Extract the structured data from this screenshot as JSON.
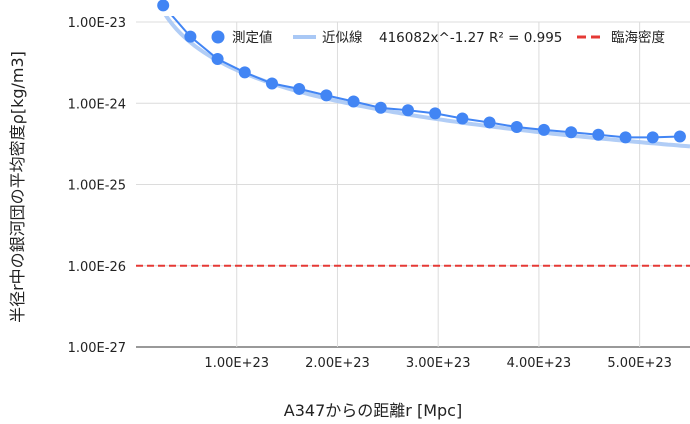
{
  "chart_data": {
    "type": "scatter",
    "title": "",
    "xlabel": "A347からの距離r [Mpc]",
    "ylabel": "半径r中の銀河団の平均密度ρ[kg/m3]",
    "x_scale": "linear",
    "y_scale": "log",
    "xlim": [
      0,
      5.5e+23
    ],
    "ylim": [
      1e-27,
      1e-23
    ],
    "x_ticks": [
      1e+23,
      2e+23,
      3e+23,
      4e+23,
      5e+23
    ],
    "x_tick_labels": [
      "1.00E+23",
      "2.00E+23",
      "3.00E+23",
      "4.00E+23",
      "5.00E+23"
    ],
    "y_ticks": [
      1e-27,
      1e-26,
      1e-25,
      1e-24,
      1e-23
    ],
    "y_tick_labels": [
      "1.00E-27",
      "1.00E-26",
      "1.00E-25",
      "1.00E-24",
      "1.00E-23"
    ],
    "grid": true,
    "legend_position": "top",
    "series": [
      {
        "name": "測定値",
        "kind": "points-and-line",
        "color": "#4285f4",
        "x": [
          2.7e+22,
          5.4e+22,
          8.1e+22,
          1.08e+23,
          1.35e+23,
          1.62e+23,
          1.89e+23,
          2.16e+23,
          2.43e+23,
          2.7e+23,
          2.97e+23,
          3.24e+23,
          3.51e+23,
          3.78e+23,
          4.05e+23,
          4.32e+23,
          4.59e+23,
          4.86e+23,
          5.13e+23,
          5.4e+23
        ],
        "y": [
          1.6e-23,
          6.6e-24,
          3.5e-24,
          2.4e-24,
          1.75e-24,
          1.5e-24,
          1.25e-24,
          1.05e-24,
          8.8e-25,
          8.2e-25,
          7.5e-25,
          6.5e-25,
          5.8e-25,
          5.1e-25,
          4.7e-25,
          4.4e-25,
          4.1e-25,
          3.8e-25,
          3.8e-25,
          3.9e-25
        ]
      },
      {
        "name": "近似線",
        "kind": "trendline",
        "color": "#a9c8f5",
        "equation_label": "416082x^-1.27 R² = 0.995",
        "coefficient": 416082,
        "exponent": -1.27,
        "r_squared": 0.995
      },
      {
        "name": "臨海密度",
        "kind": "dashed-line",
        "color": "#e53935",
        "y_constant": 1e-26
      }
    ]
  }
}
